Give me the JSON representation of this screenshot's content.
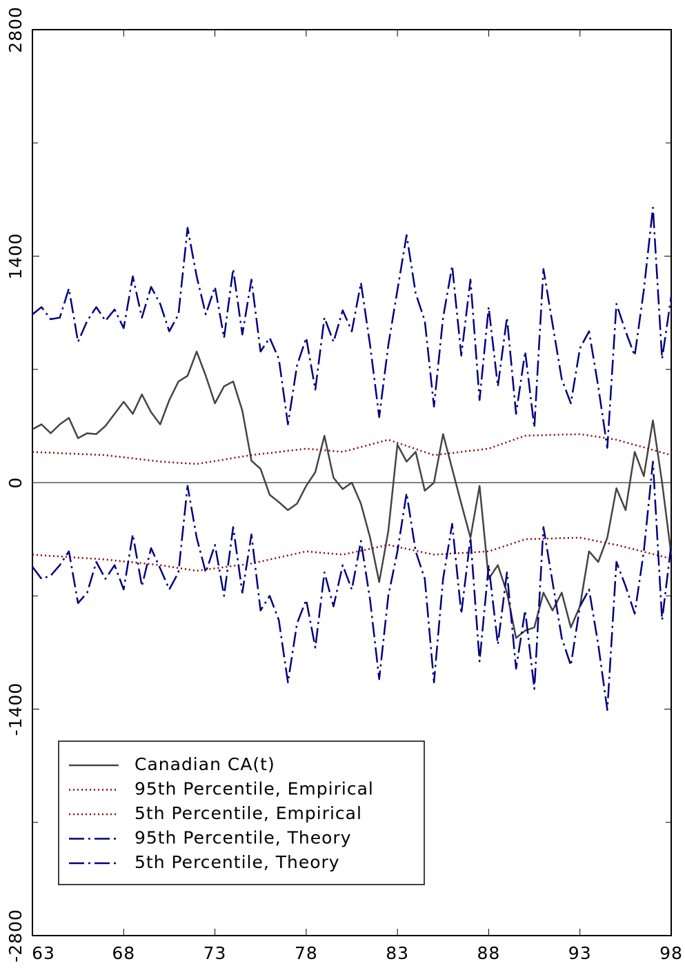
{
  "chart_data": {
    "type": "line",
    "x": [
      63,
      63.5,
      64,
      64.5,
      65,
      65.5,
      66,
      66.5,
      67,
      67.5,
      68,
      68.5,
      69,
      69.5,
      70,
      70.5,
      71,
      71.5,
      72,
      72.5,
      73,
      73.5,
      74,
      74.5,
      75,
      75.5,
      76,
      76.5,
      77,
      77.5,
      78,
      78.5,
      79,
      79.5,
      80,
      80.5,
      81,
      81.5,
      82,
      82.5,
      83,
      83.5,
      84,
      84.5,
      85,
      85.5,
      86,
      86.5,
      87,
      87.5,
      88,
      88.5,
      89,
      89.5,
      90,
      90.5,
      91,
      91.5,
      92,
      92.5,
      93,
      93.5,
      94,
      94.5,
      95,
      95.5,
      96,
      96.5,
      97,
      97.5,
      98
    ],
    "series": [
      {
        "name": "Canadian CA(t)",
        "color": "#444444",
        "style": "solid",
        "values": [
          330,
          360,
          305,
          360,
          400,
          275,
          305,
          300,
          350,
          425,
          500,
          425,
          545,
          435,
          360,
          510,
          625,
          660,
          810,
          660,
          490,
          595,
          625,
          445,
          135,
          85,
          -75,
          -120,
          -170,
          -130,
          -20,
          65,
          290,
          30,
          -40,
          0,
          -130,
          -340,
          -615,
          -300,
          235,
          130,
          190,
          -50,
          0,
          300,
          85,
          -130,
          -340,
          -20,
          -595,
          -510,
          -680,
          -960,
          -915,
          -895,
          -680,
          -790,
          -680,
          -895,
          -765,
          -425,
          -490,
          -340,
          -35,
          -170,
          190,
          40,
          385,
          0,
          -445
        ]
      },
      {
        "name": "95th Percentile, Empirical",
        "color": "#8b0000",
        "style": "dotted",
        "values": [
          190,
          187,
          185,
          182,
          180,
          177,
          175,
          172,
          170,
          163,
          157,
          150,
          143,
          137,
          130,
          126,
          122,
          119,
          115,
          124,
          133,
          142,
          152,
          161,
          170,
          177,
          183,
          190,
          197,
          203,
          210,
          205,
          200,
          195,
          190,
          205,
          220,
          235,
          250,
          265,
          246,
          227,
          208,
          189,
          170,
          177,
          183,
          190,
          197,
          203,
          210,
          230,
          250,
          270,
          290,
          292,
          293,
          295,
          297,
          298,
          300,
          291,
          283,
          274,
          265,
          249,
          233,
          218,
          202,
          186,
          170
        ]
      },
      {
        "name": "5th Percentile, Empirical",
        "color": "#8b0000",
        "style": "dotted",
        "values": [
          -445,
          -449,
          -453,
          -456,
          -460,
          -464,
          -468,
          -471,
          -475,
          -481,
          -487,
          -492,
          -498,
          -504,
          -510,
          -519,
          -528,
          -536,
          -545,
          -538,
          -530,
          -523,
          -515,
          -508,
          -500,
          -488,
          -475,
          -463,
          -450,
          -438,
          -425,
          -430,
          -435,
          -440,
          -445,
          -433,
          -421,
          -409,
          -397,
          -385,
          -397,
          -409,
          -421,
          -433,
          -445,
          -442,
          -438,
          -435,
          -432,
          -428,
          -425,
          -406,
          -388,
          -369,
          -350,
          -348,
          -347,
          -345,
          -343,
          -342,
          -340,
          -351,
          -363,
          -374,
          -385,
          -399,
          -413,
          -428,
          -442,
          -456,
          -470
        ]
      },
      {
        "name": "95th Percentile, Theory",
        "color": "#000080",
        "style": "dashdot",
        "values": [
          1040,
          1085,
          1010,
          1020,
          1200,
          870,
          1000,
          1085,
          1000,
          1070,
          955,
          1275,
          1020,
          1210,
          1105,
          935,
          1040,
          1575,
          1275,
          1040,
          1210,
          895,
          1320,
          915,
          1255,
          810,
          895,
          765,
          360,
          725,
          895,
          575,
          1020,
          870,
          1065,
          935,
          1235,
          850,
          405,
          850,
          1190,
          1530,
          1170,
          1000,
          470,
          1020,
          1340,
          785,
          1255,
          510,
          1085,
          595,
          1020,
          425,
          810,
          340,
          1320,
          980,
          640,
          490,
          830,
          935,
          595,
          215,
          1105,
          935,
          785,
          1190,
          1700,
          765,
          1150
        ]
      },
      {
        "name": "5th Percentile, Theory",
        "color": "#000080",
        "style": "dashdot",
        "values": [
          -520,
          -595,
          -575,
          -510,
          -425,
          -745,
          -680,
          -490,
          -595,
          -510,
          -660,
          -320,
          -640,
          -405,
          -530,
          -660,
          -555,
          -20,
          -340,
          -555,
          -385,
          -700,
          -275,
          -680,
          -320,
          -790,
          -700,
          -850,
          -1235,
          -870,
          -725,
          -1020,
          -555,
          -765,
          -510,
          -660,
          -360,
          -725,
          -1215,
          -700,
          -425,
          -65,
          -425,
          -595,
          -1235,
          -595,
          -255,
          -810,
          -340,
          -1105,
          -510,
          -1000,
          -555,
          -1150,
          -790,
          -1275,
          -275,
          -615,
          -960,
          -1130,
          -765,
          -660,
          -1000,
          -1405,
          -490,
          -640,
          -810,
          -425,
          130,
          -850,
          -385
        ]
      }
    ],
    "xlim": [
      63,
      98
    ],
    "xticks": [
      63,
      68,
      73,
      78,
      83,
      88,
      93,
      98
    ],
    "ylim": [
      -2800,
      2800
    ],
    "yticks": [
      -2800,
      -1400,
      0,
      1400,
      2800
    ],
    "yminor_ticks": [
      -2100,
      -700,
      700,
      2100
    ],
    "zero_line": true,
    "legend": "lower left"
  }
}
